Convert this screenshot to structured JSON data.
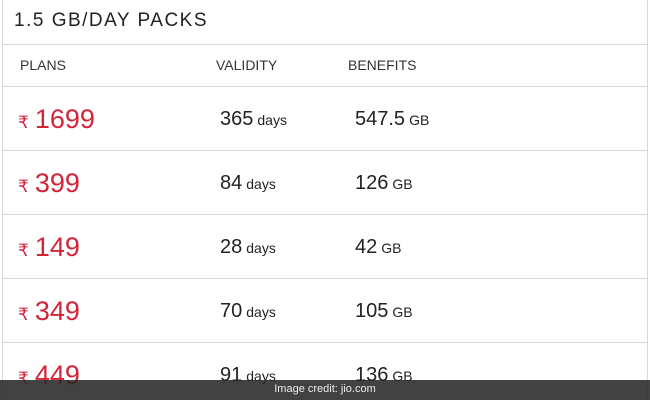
{
  "header": {
    "title": "1.5 GB/DAY PACKS"
  },
  "table": {
    "columns": [
      "PLANS",
      "VALIDITY",
      "BENEFITS"
    ],
    "rows": [
      {
        "currency": "₹",
        "price": "1699",
        "validity": "365",
        "validity_unit": "days",
        "benefit": "547.5",
        "benefit_unit": "GB"
      },
      {
        "currency": "₹",
        "price": "399",
        "validity": "84",
        "validity_unit": "days",
        "benefit": "126",
        "benefit_unit": "GB"
      },
      {
        "currency": "₹",
        "price": "149",
        "validity": "28",
        "validity_unit": "days",
        "benefit": "42",
        "benefit_unit": "GB"
      },
      {
        "currency": "₹",
        "price": "349",
        "validity": "70",
        "validity_unit": "days",
        "benefit": "105",
        "benefit_unit": "GB"
      },
      {
        "currency": "₹",
        "price": "449",
        "validity": "91",
        "validity_unit": "days",
        "benefit": "136",
        "benefit_unit": "GB"
      }
    ]
  },
  "caption": "Image credit: jio.com"
}
